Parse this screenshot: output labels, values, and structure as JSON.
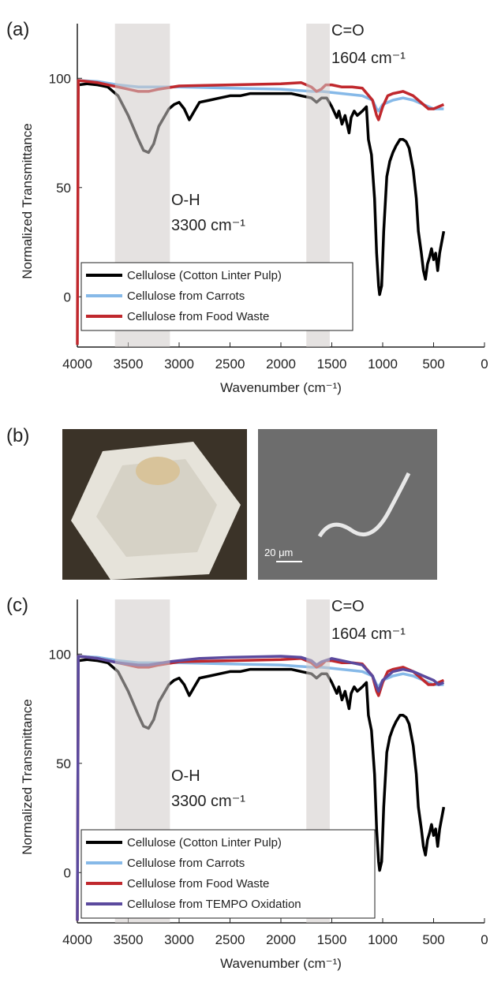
{
  "chart_data": [
    {
      "type": "line",
      "panel": "(a)",
      "xlabel": "Wavenumber (cm⁻¹)",
      "ylabel": "Normalized Transmittance",
      "xlim": [
        4000,
        0
      ],
      "ylim": [
        -23,
        125
      ],
      "xticks": [
        4000,
        3500,
        3000,
        2500,
        2000,
        1500,
        1000,
        500,
        0
      ],
      "yticks": [
        0,
        50,
        100
      ],
      "bands": [
        [
          3630,
          3090
        ],
        [
          1750,
          1520
        ]
      ],
      "annotations": [
        "O-H",
        "3300 cm⁻¹",
        "C=O",
        "1604 cm⁻¹"
      ],
      "series": [
        {
          "name": "Cellulose (Cotton Linter Pulp)",
          "color": "#000000",
          "x": [
            3990,
            3900,
            3800,
            3700,
            3600,
            3500,
            3400,
            3350,
            3300,
            3250,
            3200,
            3100,
            3050,
            3000,
            2950,
            2900,
            2850,
            2800,
            2700,
            2600,
            2500,
            2400,
            2300,
            2200,
            2100,
            2000,
            1900,
            1800,
            1700,
            1650,
            1600,
            1550,
            1500,
            1450,
            1430,
            1400,
            1370,
            1330,
            1310,
            1280,
            1250,
            1200,
            1160,
            1140,
            1110,
            1080,
            1060,
            1040,
            1030,
            1010,
            990,
            960,
            930,
            900,
            870,
            830,
            800,
            770,
            740,
            700,
            670,
            650,
            620,
            600,
            580,
            560,
            540,
            520,
            500,
            480,
            460,
            440,
            420,
            400
          ],
          "values": [
            97,
            97.5,
            97,
            96,
            92,
            83,
            72,
            67,
            66,
            70,
            78,
            86,
            88,
            89,
            86,
            81,
            85,
            89,
            90,
            91,
            92,
            92,
            93,
            93,
            93,
            93,
            93,
            92,
            91,
            89,
            91,
            91,
            87,
            82,
            85,
            79,
            83,
            75,
            82,
            85,
            83,
            85,
            87,
            72,
            65,
            45,
            20,
            5,
            1,
            5,
            30,
            55,
            62,
            66,
            69,
            72,
            72,
            71,
            68,
            58,
            45,
            30,
            20,
            12,
            8,
            15,
            18,
            22,
            17,
            20,
            12,
            20,
            25,
            30
          ]
        },
        {
          "name": "Cellulose from Carrots",
          "color": "#86b9e8",
          "x": [
            3990,
            3800,
            3600,
            3400,
            3300,
            3000,
            2500,
            2000,
            1700,
            1600,
            1400,
            1200,
            1100,
            1060,
            1040,
            1000,
            900,
            800,
            700,
            600,
            500,
            400
          ],
          "values": [
            99,
            98.5,
            97,
            96,
            96,
            96,
            95.5,
            95,
            94,
            94,
            93,
            92,
            90,
            86,
            85,
            88,
            90,
            91,
            90,
            88,
            86,
            86
          ]
        },
        {
          "name": "Cellulose from Food Waste",
          "color": "#c0282d",
          "x": [
            4000,
            3990,
            3800,
            3700,
            3500,
            3400,
            3300,
            3200,
            3000,
            2500,
            2000,
            1800,
            1700,
            1650,
            1604,
            1560,
            1500,
            1400,
            1300,
            1200,
            1100,
            1060,
            1040,
            1000,
            950,
            900,
            800,
            700,
            600,
            550,
            500,
            450,
            400
          ],
          "values": [
            -22,
            99,
            98,
            97,
            95,
            94,
            94,
            95,
            96.5,
            97,
            97.5,
            98,
            96,
            94,
            95,
            97,
            97,
            96,
            96,
            95.5,
            90,
            83,
            81,
            87,
            92,
            93,
            94,
            92,
            88,
            86,
            86,
            87,
            88
          ]
        }
      ]
    },
    {
      "type": "line",
      "panel": "(c)",
      "xlabel": "Wavenumber (cm⁻¹)",
      "ylabel": "Normalized Transmittance",
      "xlim": [
        4000,
        0
      ],
      "ylim": [
        -23,
        125
      ],
      "xticks": [
        4000,
        3500,
        3000,
        2500,
        2000,
        1500,
        1000,
        500,
        0
      ],
      "yticks": [
        0,
        50,
        100
      ],
      "bands": [
        [
          3630,
          3090
        ],
        [
          1750,
          1520
        ]
      ],
      "annotations": [
        "O-H",
        "3300 cm⁻¹",
        "C=O",
        "1604 cm⁻¹"
      ],
      "series": [
        {
          "name": "Cellulose (Cotton Linter Pulp)",
          "color": "#000000",
          "x": [
            3990,
            3900,
            3800,
            3700,
            3600,
            3500,
            3400,
            3350,
            3300,
            3250,
            3200,
            3100,
            3050,
            3000,
            2950,
            2900,
            2850,
            2800,
            2700,
            2600,
            2500,
            2400,
            2300,
            2200,
            2100,
            2000,
            1900,
            1800,
            1700,
            1650,
            1600,
            1550,
            1500,
            1450,
            1430,
            1400,
            1370,
            1330,
            1310,
            1280,
            1250,
            1200,
            1160,
            1140,
            1110,
            1080,
            1060,
            1040,
            1030,
            1010,
            990,
            960,
            930,
            900,
            870,
            830,
            800,
            770,
            740,
            700,
            670,
            650,
            620,
            600,
            580,
            560,
            540,
            520,
            500,
            480,
            460,
            440,
            420,
            400
          ],
          "values": [
            97,
            97.5,
            97,
            96,
            92,
            83,
            72,
            67,
            66,
            70,
            78,
            86,
            88,
            89,
            86,
            81,
            85,
            89,
            90,
            91,
            92,
            92,
            93,
            93,
            93,
            93,
            93,
            92,
            91,
            89,
            91,
            91,
            87,
            82,
            85,
            79,
            83,
            75,
            82,
            85,
            83,
            85,
            87,
            72,
            65,
            45,
            20,
            5,
            1,
            5,
            30,
            55,
            62,
            66,
            69,
            72,
            72,
            71,
            68,
            58,
            45,
            30,
            20,
            12,
            8,
            15,
            18,
            22,
            17,
            20,
            12,
            20,
            25,
            30
          ]
        },
        {
          "name": "Cellulose from Carrots",
          "color": "#86b9e8",
          "x": [
            3990,
            3800,
            3600,
            3400,
            3300,
            3000,
            2500,
            2000,
            1700,
            1600,
            1400,
            1200,
            1100,
            1060,
            1040,
            1000,
            900,
            800,
            700,
            600,
            500,
            400
          ],
          "values": [
            99,
            98.5,
            97,
            96,
            96,
            96,
            95.5,
            95,
            94,
            94,
            93,
            92,
            90,
            86,
            85,
            88,
            90,
            91,
            90,
            88,
            86,
            86
          ]
        },
        {
          "name": "Cellulose from Food Waste",
          "color": "#c0282d",
          "x": [
            4000,
            3990,
            3800,
            3700,
            3500,
            3400,
            3300,
            3200,
            3000,
            2500,
            2000,
            1800,
            1700,
            1650,
            1604,
            1560,
            1500,
            1400,
            1300,
            1200,
            1100,
            1060,
            1040,
            1000,
            950,
            900,
            800,
            700,
            600,
            550,
            500,
            450,
            400
          ],
          "values": [
            -22,
            99,
            98,
            97,
            95,
            94,
            94,
            95,
            96.5,
            97,
            97.5,
            98,
            96,
            94,
            95,
            97,
            97,
            96,
            96,
            95.5,
            90,
            83,
            81,
            87,
            92,
            93,
            94,
            92,
            88,
            86,
            86,
            87,
            88
          ]
        },
        {
          "name": "Cellulose from TEMPO Oxidation",
          "color": "#5b4a9e",
          "x": [
            4000,
            3990,
            3800,
            3600,
            3400,
            3300,
            3100,
            2800,
            2500,
            2000,
            1800,
            1700,
            1650,
            1600,
            1500,
            1400,
            1300,
            1200,
            1100,
            1060,
            1040,
            1000,
            900,
            800,
            700,
            600,
            500,
            450,
            400
          ],
          "values": [
            -22,
            99,
            98,
            96,
            95,
            95,
            96.5,
            98,
            98.5,
            99,
            98.5,
            97,
            95,
            96.5,
            98,
            97,
            96,
            95,
            90,
            85,
            83,
            88,
            92,
            93,
            92,
            90,
            88,
            86,
            87
          ]
        }
      ]
    }
  ],
  "figure": {
    "panel_label": "(b)",
    "scale_bar": "20 μm"
  }
}
